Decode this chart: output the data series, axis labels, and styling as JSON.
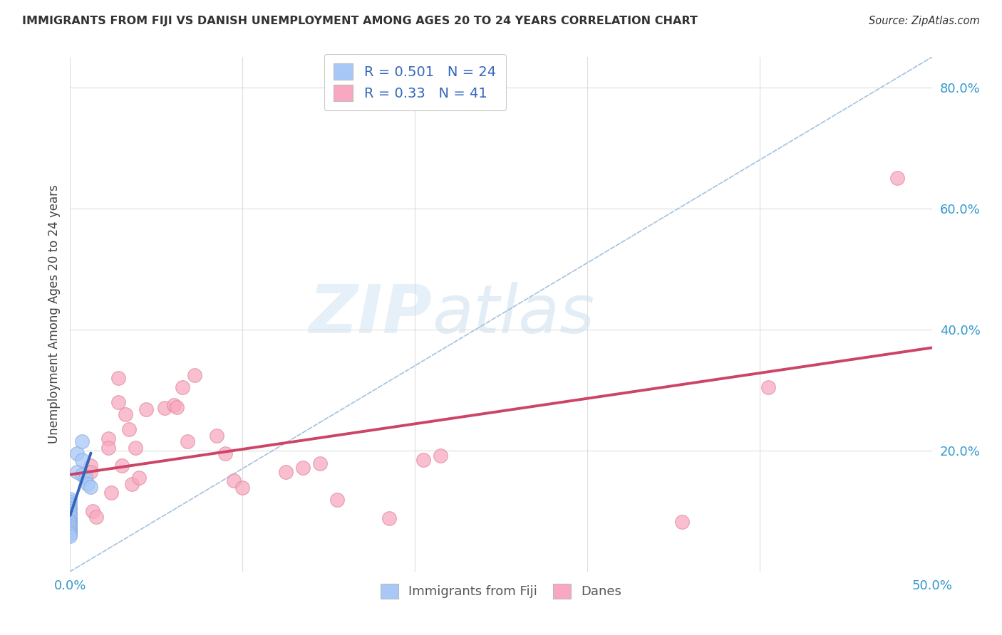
{
  "title": "IMMIGRANTS FROM FIJI VS DANISH UNEMPLOYMENT AMONG AGES 20 TO 24 YEARS CORRELATION CHART",
  "source": "Source: ZipAtlas.com",
  "ylabel": "Unemployment Among Ages 20 to 24 years",
  "xlim": [
    0.0,
    0.5
  ],
  "ylim": [
    0.0,
    0.85
  ],
  "xticks": [
    0.0,
    0.1,
    0.2,
    0.3,
    0.4,
    0.5
  ],
  "yticks": [
    0.0,
    0.2,
    0.4,
    0.6,
    0.8
  ],
  "ytick_labels": [
    "",
    "20.0%",
    "40.0%",
    "60.0%",
    "80.0%"
  ],
  "xtick_labels": [
    "0.0%",
    "",
    "",
    "",
    "",
    "50.0%"
  ],
  "fiji_color": "#a8c8f8",
  "fiji_edge_color": "#88aadd",
  "danes_color": "#f8a8c0",
  "danes_edge_color": "#dd8899",
  "fiji_trend_color": "#3366bb",
  "danes_trend_color": "#cc4466",
  "ref_line_color": "#99bbdd",
  "fiji_R": 0.501,
  "fiji_N": 24,
  "danes_R": 0.33,
  "danes_N": 41,
  "watermark_zip": "ZIP",
  "watermark_atlas": "atlas",
  "fiji_x": [
    0.0,
    0.0,
    0.0,
    0.0,
    0.0,
    0.0,
    0.0,
    0.0,
    0.0,
    0.0,
    0.0,
    0.0,
    0.0,
    0.0,
    0.0,
    0.0,
    0.004,
    0.004,
    0.007,
    0.007,
    0.007,
    0.009,
    0.01,
    0.012
  ],
  "fiji_y": [
    0.12,
    0.115,
    0.11,
    0.105,
    0.1,
    0.095,
    0.09,
    0.085,
    0.082,
    0.078,
    0.075,
    0.072,
    0.068,
    0.065,
    0.062,
    0.058,
    0.195,
    0.165,
    0.215,
    0.185,
    0.16,
    0.155,
    0.145,
    0.14
  ],
  "danes_x": [
    0.0,
    0.0,
    0.0,
    0.0,
    0.0,
    0.012,
    0.012,
    0.013,
    0.015,
    0.022,
    0.022,
    0.024,
    0.028,
    0.028,
    0.03,
    0.032,
    0.034,
    0.036,
    0.038,
    0.04,
    0.044,
    0.055,
    0.06,
    0.062,
    0.065,
    0.068,
    0.072,
    0.085,
    0.09,
    0.095,
    0.1,
    0.125,
    0.135,
    0.145,
    0.155,
    0.185,
    0.205,
    0.215,
    0.355,
    0.405,
    0.48
  ],
  "danes_y": [
    0.105,
    0.095,
    0.088,
    0.082,
    0.068,
    0.175,
    0.165,
    0.1,
    0.09,
    0.22,
    0.205,
    0.13,
    0.32,
    0.28,
    0.175,
    0.26,
    0.235,
    0.145,
    0.205,
    0.155,
    0.268,
    0.27,
    0.275,
    0.272,
    0.305,
    0.215,
    0.325,
    0.225,
    0.195,
    0.15,
    0.138,
    0.165,
    0.172,
    0.178,
    0.118,
    0.088,
    0.185,
    0.192,
    0.082,
    0.305,
    0.65
  ],
  "background_color": "#ffffff",
  "grid_color": "#dddddd",
  "tick_color": "#3399cc",
  "title_color": "#333333",
  "ylabel_color": "#444444"
}
